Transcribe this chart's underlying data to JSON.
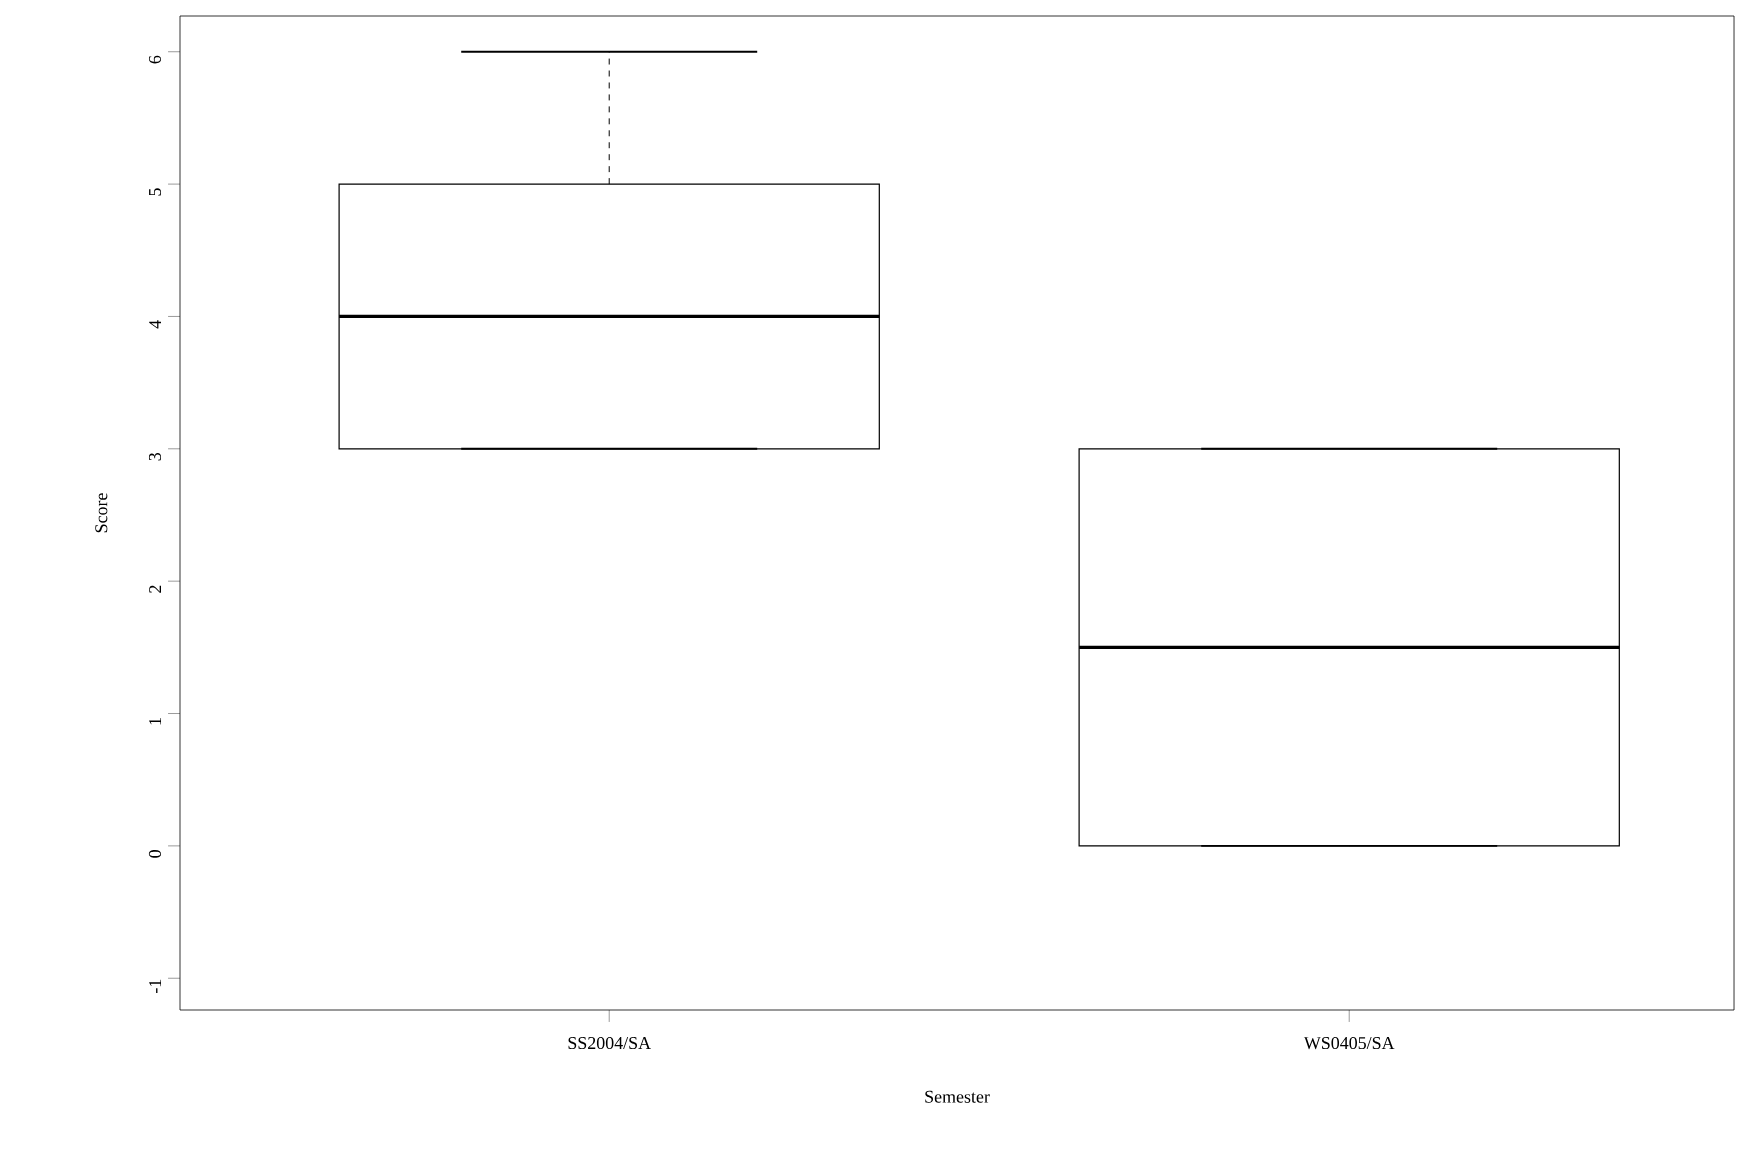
{
  "chart_data": {
    "type": "box",
    "xlabel": "Semester",
    "ylabel": "Score",
    "categories": [
      "SS2004/SA",
      "WS0405/SA"
    ],
    "boxes": [
      {
        "low": 3,
        "q1": 3,
        "median": 4,
        "q3": 5,
        "high": 6
      },
      {
        "low": 0,
        "q1": 0,
        "median": 1.5,
        "q3": 3,
        "high": 3
      }
    ],
    "ylim": [
      -1.24,
      6.27
    ],
    "yticks": [
      -1,
      0,
      1,
      2,
      3,
      4,
      5,
      6
    ],
    "grid": false
  }
}
